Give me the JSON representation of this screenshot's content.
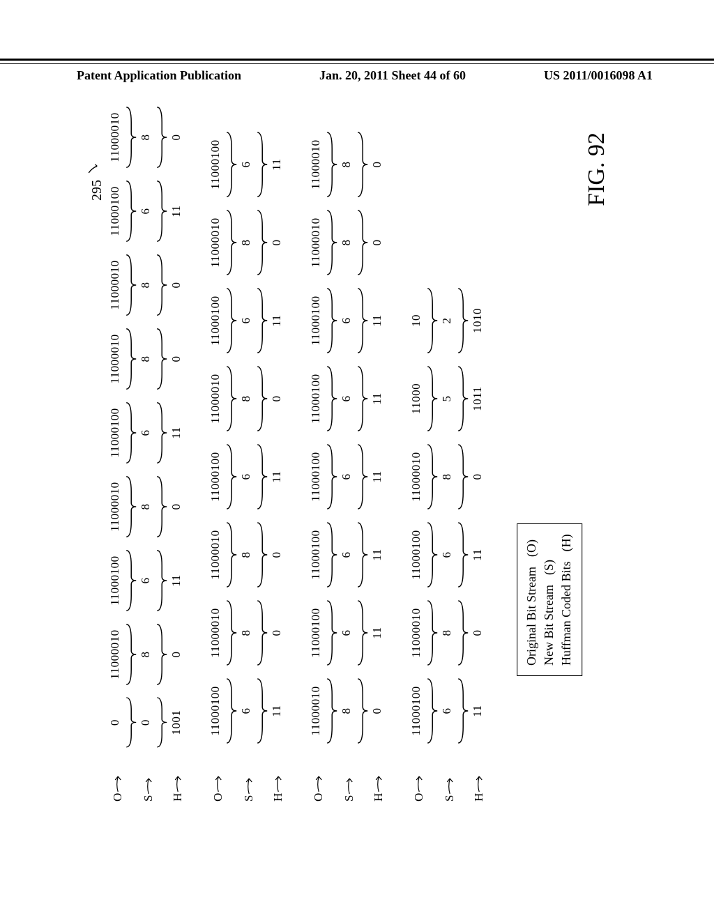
{
  "header": {
    "left": "Patent Application Publication",
    "center": "Jan. 20, 2011  Sheet 44 of 60",
    "right": "US 2011/0016098 A1"
  },
  "ref_number": "295",
  "legend": {
    "rows": [
      {
        "label": "Original Bit Stream",
        "code": "(O)"
      },
      {
        "label": "New Bit Stream",
        "code": "(S)"
      },
      {
        "label": "Huffman Coded Bits",
        "code": "(H)"
      }
    ]
  },
  "figure_caption": "FIG. 92",
  "groups": [
    {
      "show_labels": true,
      "rows": {
        "O": [
          "0",
          "11000010",
          "11000100",
          "11000010",
          "11000100",
          "11000010",
          "11000010",
          "11000100",
          "11000010"
        ],
        "S": [
          "0",
          "8",
          "6",
          "8",
          "6",
          "8",
          "8",
          "6",
          "8"
        ],
        "H": [
          "1001",
          "0",
          "11",
          "0",
          "11",
          "0",
          "0",
          "11",
          "0"
        ]
      },
      "widths": [
        "narrow",
        "",
        "",
        "",
        "",
        "",
        "",
        "",
        ""
      ]
    },
    {
      "show_labels": true,
      "rows": {
        "O": [
          "11000100",
          "11000010",
          "11000010",
          "11000100",
          "11000010",
          "11000100",
          "11000010",
          "11000100"
        ],
        "S": [
          "6",
          "8",
          "8",
          "6",
          "8",
          "6",
          "8",
          "6"
        ],
        "H": [
          "11",
          "0",
          "0",
          "11",
          "0",
          "11",
          "0",
          "11"
        ]
      },
      "widths": [
        "",
        "",
        "",
        "",
        "",
        "",
        "",
        ""
      ]
    },
    {
      "show_labels": true,
      "rows": {
        "O": [
          "11000010",
          "11000100",
          "11000100",
          "11000100",
          "11000100",
          "11000100",
          "11000010",
          "11000010"
        ],
        "S": [
          "8",
          "6",
          "6",
          "6",
          "6",
          "6",
          "8",
          "8"
        ],
        "H": [
          "0",
          "11",
          "11",
          "11",
          "11",
          "11",
          "0",
          "0"
        ]
      },
      "widths": [
        "",
        "",
        "",
        "",
        "",
        "",
        "",
        ""
      ]
    },
    {
      "show_labels": true,
      "rows": {
        "O": [
          "11000100",
          "11000010",
          "11000100",
          "11000010",
          "11000",
          "10"
        ],
        "S": [
          "6",
          "8",
          "6",
          "8",
          "5",
          "2"
        ],
        "H": [
          "11",
          "0",
          "11",
          "0",
          "1011",
          "1010"
        ]
      },
      "widths": [
        "",
        "",
        "",
        "",
        "medium",
        "narrow"
      ]
    }
  ]
}
